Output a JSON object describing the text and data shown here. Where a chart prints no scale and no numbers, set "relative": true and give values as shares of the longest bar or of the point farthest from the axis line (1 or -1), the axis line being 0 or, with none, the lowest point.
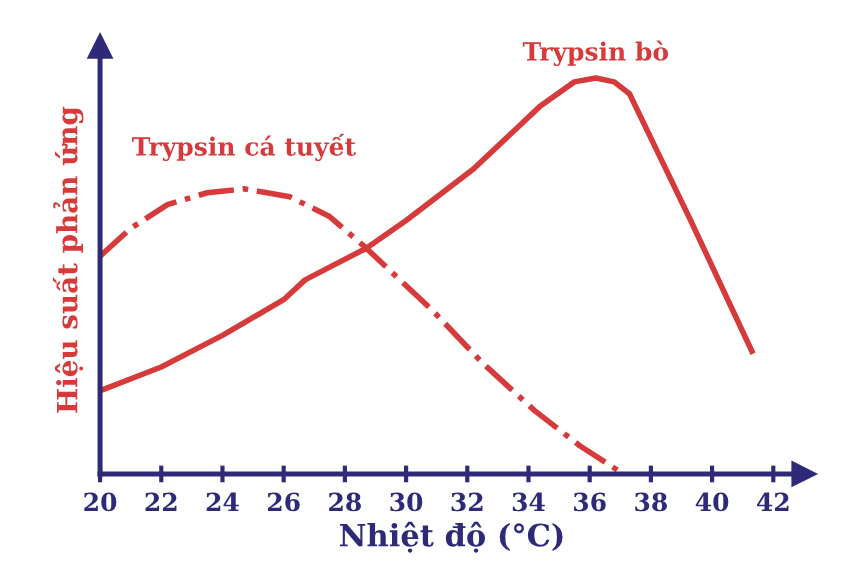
{
  "chart_data": {
    "type": "line",
    "relative": true,
    "xlabel": "Nhiệt độ (°C)",
    "ylabel": "Hiệu suất phản ứng",
    "xlim": [
      20,
      43
    ],
    "xticks": [
      20,
      22,
      24,
      26,
      28,
      30,
      32,
      34,
      36,
      38,
      40,
      42
    ],
    "grid": false,
    "legend": false,
    "marker": "none",
    "series": [
      {
        "name": "Trypsin bò",
        "color": "#d63a3a",
        "line_style": "solid",
        "x": [
          20,
          22,
          24,
          26,
          26.7,
          28.7,
          30,
          32.2,
          34.4,
          35.5,
          36.2,
          36.8,
          37.3,
          38.3,
          39.3,
          41.3
        ],
        "values": [
          0.21,
          0.27,
          0.35,
          0.44,
          0.49,
          0.57,
          0.64,
          0.77,
          0.93,
          0.99,
          1.0,
          0.99,
          0.96,
          0.8,
          0.64,
          0.31
        ]
      },
      {
        "name": "Trypsin cá tuyết",
        "color": "#d63a3a",
        "line_style": "dashdot",
        "x": [
          20,
          21,
          22.2,
          23.5,
          24.7,
          26.2,
          27.5,
          28.7,
          30.9,
          32.5,
          34.2,
          35.7,
          37.1
        ],
        "values": [
          0.55,
          0.62,
          0.68,
          0.71,
          0.72,
          0.7,
          0.65,
          0.57,
          0.41,
          0.28,
          0.16,
          0.07,
          0.0
        ]
      }
    ]
  }
}
